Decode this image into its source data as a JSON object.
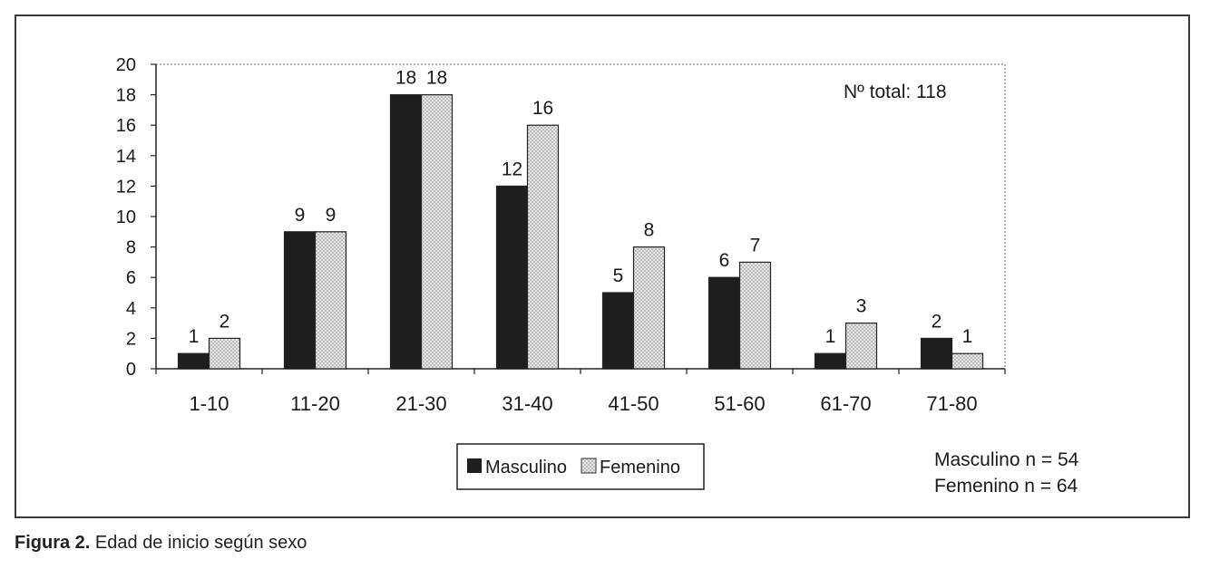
{
  "chart_data": {
    "type": "bar",
    "title": "",
    "xlabel": "",
    "ylabel": "",
    "ylim": [
      0,
      20
    ],
    "yticks": [
      0,
      2,
      4,
      6,
      8,
      10,
      12,
      14,
      16,
      18,
      20
    ],
    "categories": [
      "1-10",
      "11-20",
      "21-30",
      "31-40",
      "41-50",
      "51-60",
      "61-70",
      "71-80"
    ],
    "series": [
      {
        "name": "Masculino",
        "values": [
          1,
          9,
          18,
          12,
          5,
          6,
          1,
          2
        ],
        "color": "#1e1e1e"
      },
      {
        "name": "Femenino",
        "values": [
          2,
          9,
          18,
          16,
          8,
          7,
          3,
          1
        ],
        "color": "#dcdcdc"
      }
    ],
    "legend_position": "bottom-center",
    "annotation": "Nº total: 118",
    "sample_sizes": [
      "Masculino n = 54",
      "Femenino n = 64"
    ]
  },
  "caption": {
    "figure_label": "Figura 2.",
    "text": "Edad de inicio según sexo"
  }
}
